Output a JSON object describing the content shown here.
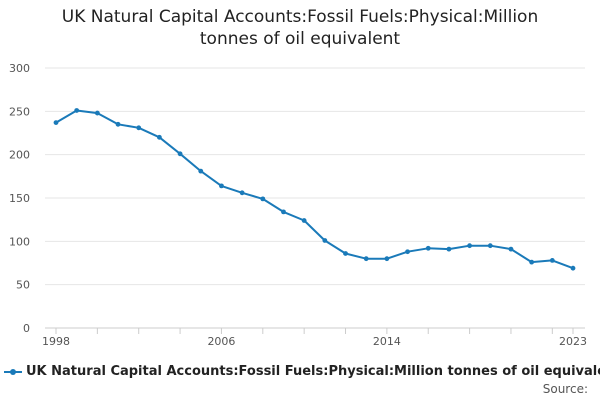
{
  "chart_data": {
    "type": "line",
    "title_lines": [
      "UK Natural Capital Accounts:Fossil Fuels:Physical:Million",
      "tonnes of oil equivalent"
    ],
    "x": [
      1998,
      1999,
      2000,
      2001,
      2002,
      2003,
      2004,
      2005,
      2006,
      2007,
      2008,
      2009,
      2010,
      2011,
      2012,
      2013,
      2014,
      2015,
      2016,
      2017,
      2018,
      2019,
      2020,
      2021,
      2022,
      2023
    ],
    "x_ticks": [
      "1998",
      "2006",
      "2014",
      "2023"
    ],
    "y_ticks": [
      "0",
      "50",
      "100",
      "150",
      "200",
      "250",
      "300"
    ],
    "ylim": [
      0,
      300
    ],
    "grid": true,
    "series": [
      {
        "name": "UK Natural Capital Accounts:Fossil Fuels:Physical:Million tonnes of oil equivalent",
        "color": "#1a7ab9",
        "values": [
          237,
          251,
          248,
          235,
          231,
          220,
          201,
          181,
          164,
          156,
          149,
          134,
          124,
          101,
          86,
          80,
          80,
          88,
          92,
          91,
          95,
          95,
          91,
          76,
          78,
          69
        ]
      }
    ],
    "legend_position": "bottom-left",
    "source_label": "Source:"
  }
}
